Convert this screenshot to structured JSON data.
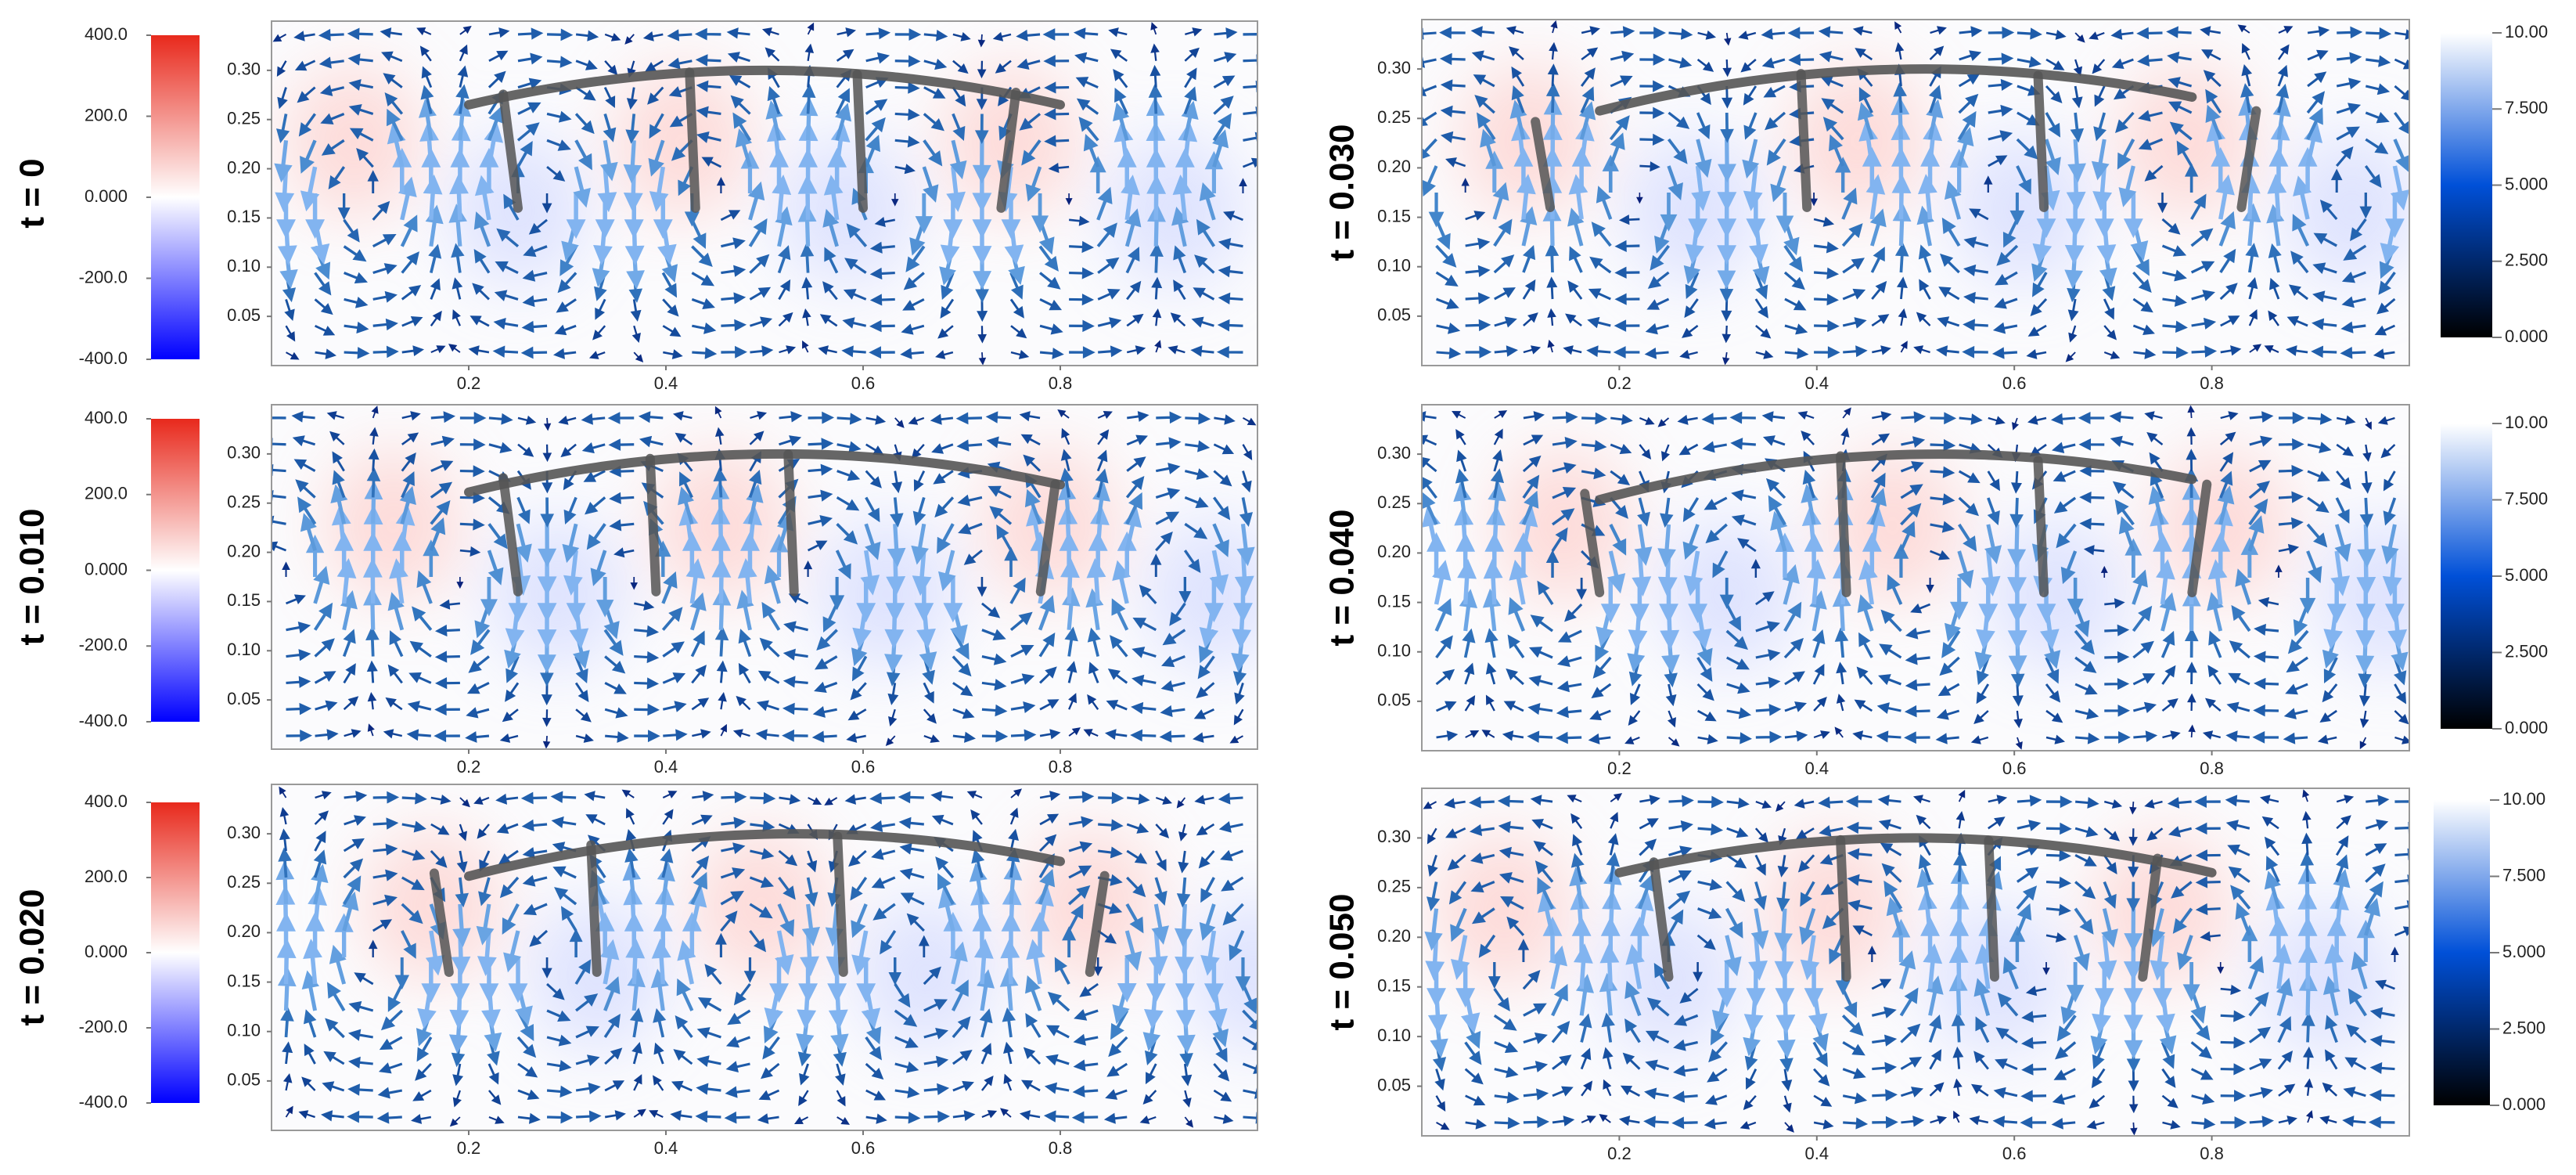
{
  "chart_data": [
    {
      "type": "vector-field",
      "title": "t = 0",
      "xlim": [
        0,
        1
      ],
      "ylim": [
        0,
        0.35
      ],
      "xticks": [
        0.2,
        0.4,
        0.6,
        0.8
      ],
      "yticks": [
        0.05,
        {
          "value": 0.1,
          "label": "0.10"
        },
        0.15,
        {
          "value": 0.2,
          "label": "0.20"
        },
        0.25,
        {
          "value": 0.3,
          "label": "0.30"
        }
      ],
      "colorbar": {
        "lim": [
          -400,
          400
        ],
        "colors": [
          "#0000ff",
          "#ffffff",
          "#e8291c"
        ],
        "ticks": [
          {
            "value": 400,
            "label": "400.0"
          },
          {
            "value": 200,
            "label": "200.0"
          },
          {
            "value": 0,
            "label": "0.000"
          },
          {
            "value": -200,
            "label": "-200.0"
          },
          {
            "value": -400,
            "label": "-400.0"
          }
        ]
      }
    },
    {
      "type": "vector-field",
      "title": "t = 0.010",
      "xlim": [
        0,
        1
      ],
      "ylim": [
        0,
        0.35
      ],
      "xticks": [
        0.2,
        0.4,
        0.6,
        0.8
      ],
      "yticks": [
        0.05,
        {
          "value": 0.1,
          "label": "0.10"
        },
        0.15,
        {
          "value": 0.2,
          "label": "0.20"
        },
        0.25,
        {
          "value": 0.3,
          "label": "0.30"
        }
      ],
      "colorbar": {
        "lim": [
          -400,
          400
        ],
        "colors": [
          "#0000ff",
          "#ffffff",
          "#e8291c"
        ],
        "ticks": [
          {
            "value": 400,
            "label": "400.0"
          },
          {
            "value": 200,
            "label": "200.0"
          },
          {
            "value": 0,
            "label": "0.000"
          },
          {
            "value": -200,
            "label": "-200.0"
          },
          {
            "value": -400,
            "label": "-400.0"
          }
        ]
      }
    },
    {
      "type": "vector-field",
      "title": "t = 0.020",
      "xlim": [
        0,
        1
      ],
      "ylim": [
        0,
        0.35
      ],
      "xticks": [
        0.2,
        0.4,
        0.6,
        0.8
      ],
      "yticks": [
        0.05,
        {
          "value": 0.1,
          "label": "0.10"
        },
        0.15,
        {
          "value": 0.2,
          "label": "0.20"
        },
        0.25,
        {
          "value": 0.3,
          "label": "0.30"
        }
      ],
      "colorbar": {
        "lim": [
          -400,
          400
        ],
        "colors": [
          "#0000ff",
          "#ffffff",
          "#e8291c"
        ],
        "ticks": [
          {
            "value": 400,
            "label": "400.0"
          },
          {
            "value": 200,
            "label": "200.0"
          },
          {
            "value": 0,
            "label": "0.000"
          },
          {
            "value": -200,
            "label": "-200.0"
          },
          {
            "value": -400,
            "label": "-400.0"
          }
        ]
      }
    },
    {
      "type": "vector-field",
      "title": "t = 0.030",
      "xlim": [
        0,
        1
      ],
      "ylim": [
        0,
        0.35
      ],
      "xticks": [
        0.2,
        0.4,
        0.6,
        0.8
      ],
      "yticks": [
        0.05,
        {
          "value": 0.1,
          "label": "0.10"
        },
        0.15,
        {
          "value": 0.2,
          "label": "0.20"
        },
        0.25,
        {
          "value": 0.3,
          "label": "0.30"
        }
      ],
      "colorbar": {
        "lim": [
          0,
          10
        ],
        "colors": [
          "#000000",
          "#0050d8",
          "#ffffff"
        ],
        "ticks": [
          {
            "value": 10,
            "label": "10.00"
          },
          {
            "value": 7.5,
            "label": "7.500"
          },
          {
            "value": 5,
            "label": "5.000"
          },
          {
            "value": 2.5,
            "label": "2.500"
          },
          {
            "value": 0,
            "label": "0.000"
          }
        ]
      }
    },
    {
      "type": "vector-field",
      "title": "t = 0.040",
      "xlim": [
        0,
        1
      ],
      "ylim": [
        0,
        0.35
      ],
      "xticks": [
        0.2,
        0.4,
        0.6,
        0.8
      ],
      "yticks": [
        0.05,
        {
          "value": 0.1,
          "label": "0.10"
        },
        0.15,
        {
          "value": 0.2,
          "label": "0.20"
        },
        0.25,
        {
          "value": 0.3,
          "label": "0.30"
        }
      ],
      "colorbar": {
        "lim": [
          0,
          10
        ],
        "colors": [
          "#000000",
          "#0050d8",
          "#ffffff"
        ],
        "ticks": [
          {
            "value": 10,
            "label": "10.00"
          },
          {
            "value": 7.5,
            "label": "7.500"
          },
          {
            "value": 5,
            "label": "5.000"
          },
          {
            "value": 2.5,
            "label": "2.500"
          },
          {
            "value": 0,
            "label": "0.000"
          }
        ]
      }
    },
    {
      "type": "vector-field",
      "title": "t = 0.050",
      "xlim": [
        0,
        1
      ],
      "ylim": [
        0,
        0.35
      ],
      "xticks": [
        0.2,
        0.4,
        0.6,
        0.8
      ],
      "yticks": [
        0.05,
        {
          "value": 0.1,
          "label": "0.10"
        },
        0.15,
        {
          "value": 0.2,
          "label": "0.20"
        },
        0.25,
        {
          "value": 0.3,
          "label": "0.30"
        }
      ],
      "colorbar": {
        "lim": [
          0,
          10
        ],
        "colors": [
          "#000000",
          "#0050d8",
          "#ffffff"
        ],
        "ticks": [
          {
            "value": 10,
            "label": "10.00"
          },
          {
            "value": 7.5,
            "label": "7.500"
          },
          {
            "value": 5,
            "label": "5.000"
          },
          {
            "value": 2.5,
            "label": "2.500"
          },
          {
            "value": 0,
            "label": "0.000"
          }
        ]
      }
    }
  ]
}
